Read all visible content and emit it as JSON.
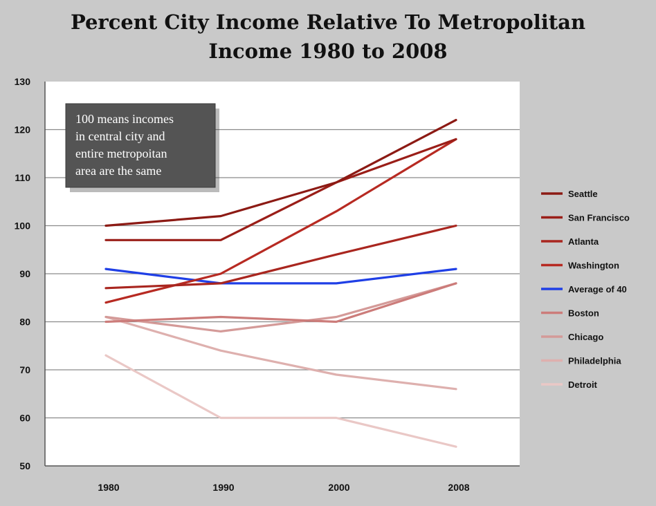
{
  "chart_data": {
    "type": "line",
    "title_lines": [
      "Percent City Income Relative To Metropolitan",
      "Income 1980 to 2008"
    ],
    "xlabel": "",
    "ylabel": "",
    "categories": [
      "1980",
      "1990",
      "2000",
      "2008"
    ],
    "ylim": [
      50,
      130
    ],
    "yticks": [
      50,
      60,
      70,
      80,
      90,
      100,
      110,
      120,
      130
    ],
    "grid": "horizontal",
    "legend_position": "right",
    "annotation_lines": [
      "100 means incomes",
      "in central city and",
      "entire metropoitan",
      "area are the same"
    ],
    "series": [
      {
        "name": "Seattle",
        "color": "#8c1a14",
        "values": [
          100,
          102,
          109,
          122
        ]
      },
      {
        "name": "San Francisco",
        "color": "#9a1e18",
        "values": [
          97,
          97,
          109,
          118
        ]
      },
      {
        "name": "Atlanta",
        "color": "#a9261f",
        "values": [
          87,
          88,
          94,
          100
        ]
      },
      {
        "name": "Washington",
        "color": "#b72a22",
        "values": [
          84,
          90,
          103,
          118
        ]
      },
      {
        "name": "Average of 40",
        "color": "#1f3fe6",
        "values": [
          91,
          88,
          88,
          91
        ]
      },
      {
        "name": "Boston",
        "color": "#cc7c7a",
        "values": [
          80,
          81,
          80,
          88
        ]
      },
      {
        "name": "Chicago",
        "color": "#d49a98",
        "values": [
          81,
          78,
          81,
          88
        ]
      },
      {
        "name": "Philadelphia",
        "color": "#deb0ae",
        "values": [
          81,
          74,
          69,
          66
        ]
      },
      {
        "name": "Detroit",
        "color": "#eac8c6",
        "values": [
          73,
          60,
          60,
          54
        ]
      }
    ]
  }
}
